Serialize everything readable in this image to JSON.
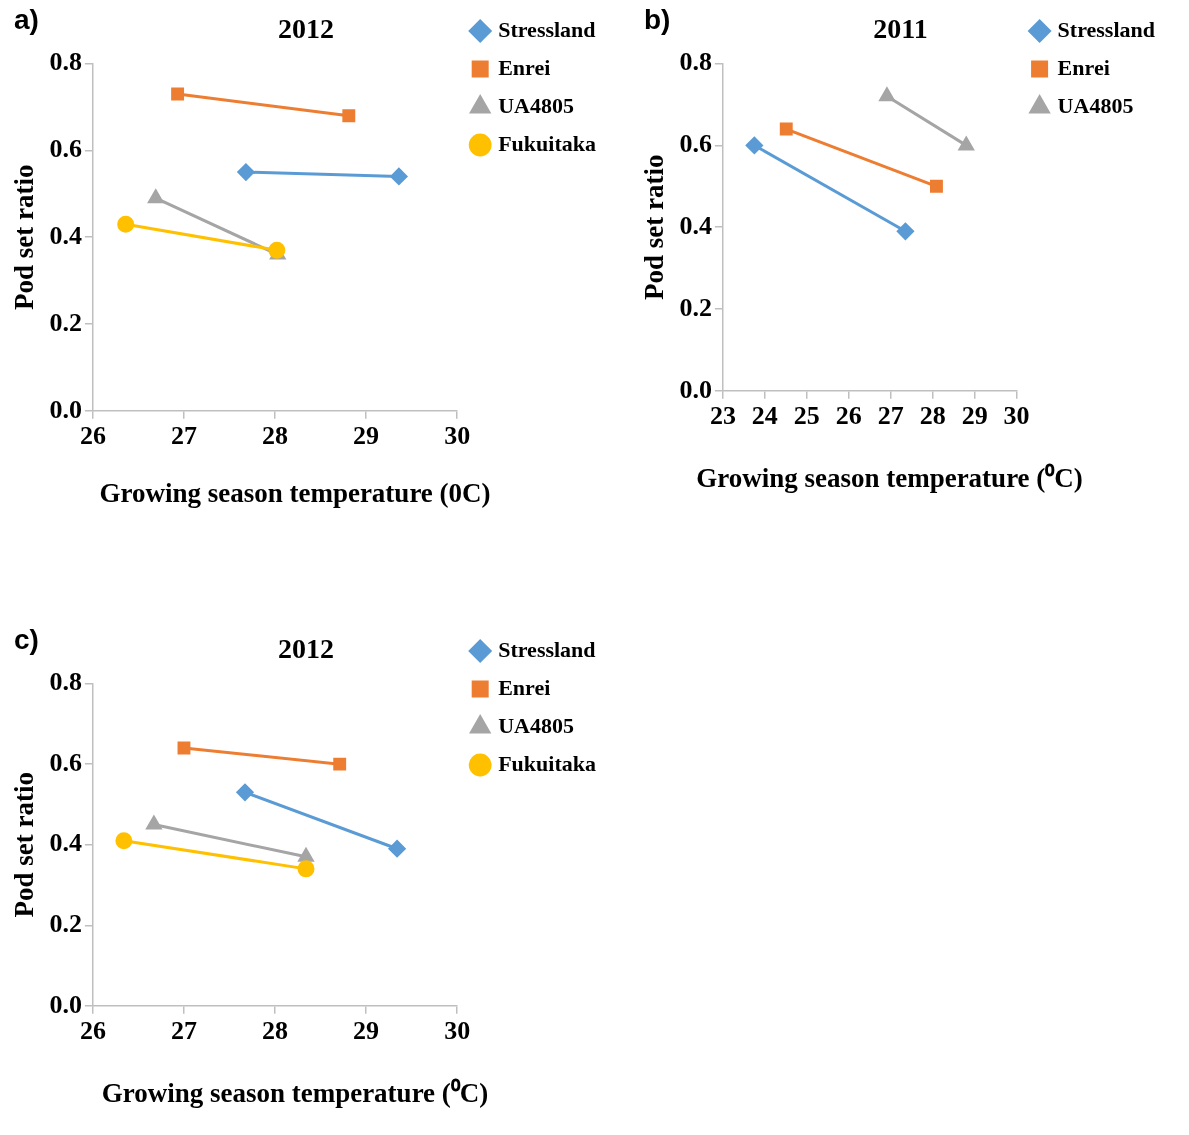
{
  "chart_data": [
    {
      "type": "line",
      "title": "2012",
      "xlabel": "Growing season temperature (0C)",
      "ylabel": "Pod set ratio",
      "annotations": [
        "a)"
      ],
      "legend": "top right",
      "grid": false,
      "xlim": [
        26,
        30
      ],
      "xticks": [
        26,
        27,
        28,
        29,
        30
      ],
      "ylim": [
        0,
        0.8
      ],
      "yticks": [
        {
          "value": 0,
          "label": "0.0"
        },
        {
          "value": 0.2,
          "label": "0.2"
        },
        {
          "value": 0.4,
          "label": "0.4"
        },
        {
          "value": 0.6,
          "label": "0.6"
        },
        {
          "value": 0.8,
          "label": "0.8"
        }
      ],
      "series": [
        {
          "name": "Stressland",
          "color": "#5b9bd5",
          "marker": "diamond",
          "x": [
            27.68,
            29.36
          ],
          "values": [
            0.55,
            0.54
          ]
        },
        {
          "name": "Enrei",
          "color": "#ed7d31",
          "marker": "square",
          "x": [
            26.93,
            28.81
          ],
          "values": [
            0.73,
            0.68
          ]
        },
        {
          "name": "UA4805",
          "color": "#a5a5a5",
          "marker": "triangle",
          "x": [
            26.69,
            28.03
          ],
          "values": [
            0.49,
            0.36
          ]
        },
        {
          "name": "Fukuitaka",
          "color": "#ffc000",
          "marker": "circle",
          "x": [
            26.36,
            28.02
          ],
          "values": [
            0.43,
            0.37
          ]
        }
      ]
    },
    {
      "type": "line",
      "title": "2011",
      "xlabel": "Growing season temperature (⁰C)",
      "ylabel": "Pod set ratio",
      "annotations": [
        "b)"
      ],
      "legend": "top right",
      "grid": false,
      "xlim": [
        23,
        30
      ],
      "xticks": [
        23,
        24,
        25,
        26,
        27,
        28,
        29,
        30
      ],
      "ylim": [
        0,
        0.8
      ],
      "yticks": [
        {
          "value": 0,
          "label": "0.0"
        },
        {
          "value": 0.2,
          "label": "0.2"
        },
        {
          "value": 0.4,
          "label": "0.4"
        },
        {
          "value": 0.6,
          "label": "0.6"
        },
        {
          "value": 0.8,
          "label": "0.8"
        }
      ],
      "series": [
        {
          "name": "Stressland",
          "color": "#5b9bd5",
          "marker": "diamond",
          "x": [
            23.75,
            27.35
          ],
          "values": [
            0.6,
            0.39
          ]
        },
        {
          "name": "Enrei",
          "color": "#ed7d31",
          "marker": "square",
          "x": [
            24.51,
            28.09
          ],
          "values": [
            0.64,
            0.5
          ]
        },
        {
          "name": "UA4805",
          "color": "#a5a5a5",
          "marker": "triangle",
          "x": [
            26.91,
            28.8
          ],
          "values": [
            0.72,
            0.6
          ]
        }
      ]
    },
    {
      "type": "line",
      "title": "2012",
      "xlabel": "Growing season temperature (⁰C)",
      "ylabel": "Pod set ratio",
      "annotations": [
        "c)"
      ],
      "legend": "top right",
      "grid": false,
      "xlim": [
        26,
        30
      ],
      "xticks": [
        26,
        27,
        28,
        29,
        30
      ],
      "ylim": [
        0,
        0.8
      ],
      "yticks": [
        {
          "value": 0,
          "label": "0.0"
        },
        {
          "value": 0.2,
          "label": "0.2"
        },
        {
          "value": 0.4,
          "label": "0.4"
        },
        {
          "value": 0.6,
          "label": "0.6"
        },
        {
          "value": 0.8,
          "label": "0.8"
        }
      ],
      "series": [
        {
          "name": "Stressland",
          "color": "#5b9bd5",
          "marker": "diamond",
          "x": [
            27.67,
            29.34
          ],
          "values": [
            0.53,
            0.39
          ]
        },
        {
          "name": "Enrei",
          "color": "#ed7d31",
          "marker": "square",
          "x": [
            27.0,
            28.71
          ],
          "values": [
            0.64,
            0.6
          ]
        },
        {
          "name": "UA4805",
          "color": "#a5a5a5",
          "marker": "triangle",
          "x": [
            26.67,
            28.34
          ],
          "values": [
            0.45,
            0.37
          ]
        },
        {
          "name": "Fukuitaka",
          "color": "#ffc000",
          "marker": "circle",
          "x": [
            26.34,
            28.34
          ],
          "values": [
            0.41,
            0.34
          ]
        }
      ]
    }
  ]
}
